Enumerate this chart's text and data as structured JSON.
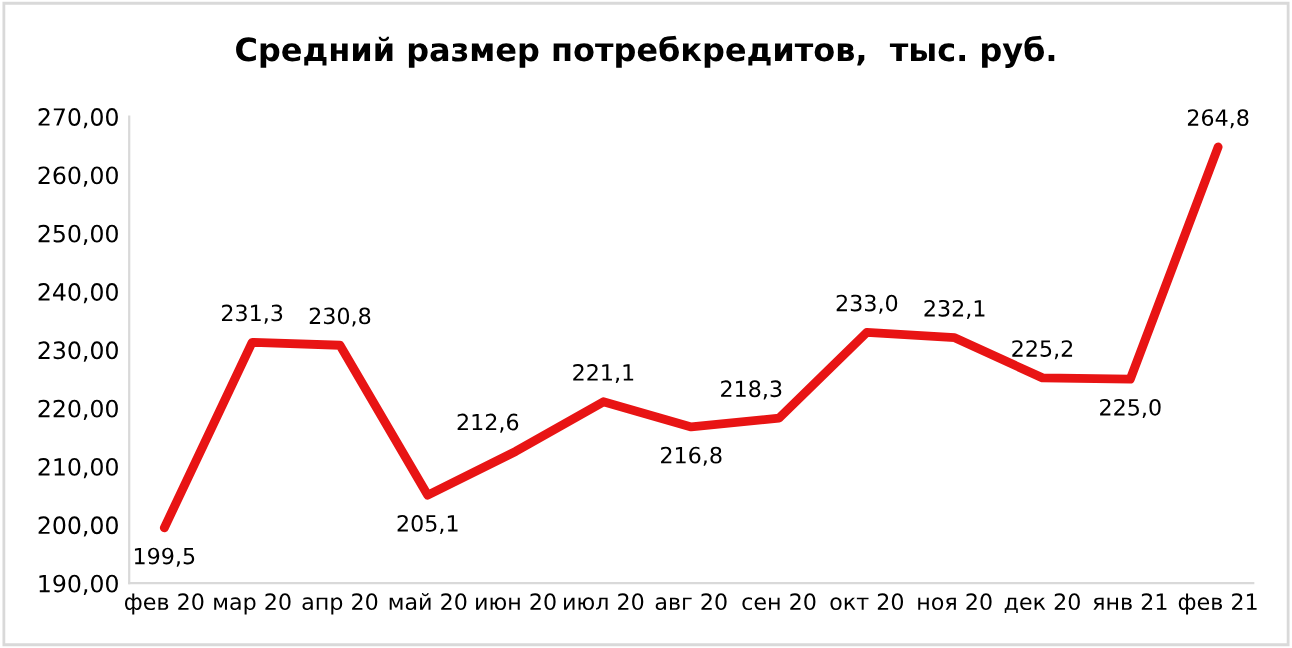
{
  "chart_data": {
    "type": "line",
    "title": "Средний размер потребкредитов,  тыс. руб.",
    "categories": [
      "фев 20",
      "мар 20",
      "апр 20",
      "май 20",
      "июн 20",
      "июл 20",
      "авг 20",
      "сен 20",
      "окт 20",
      "ноя 20",
      "дек 20",
      "янв 21",
      "фев 21"
    ],
    "series": [
      {
        "color": "#e81414",
        "values": [
          199.5,
          231.3,
          230.8,
          205.1,
          212.6,
          221.1,
          216.8,
          218.3,
          233.0,
          232.1,
          225.2,
          225.0,
          264.8
        ],
        "value_labels": [
          "199,5",
          "231,3",
          "230,8",
          "205,1",
          "212,6",
          "221,1",
          "216,8",
          "218,3",
          "233,0",
          "232,1",
          "225,2",
          "225,0",
          "264,8"
        ]
      }
    ],
    "ylim": [
      190,
      270
    ],
    "yticks": [
      {
        "value": 190,
        "label": "190,00"
      },
      {
        "value": 200,
        "label": "200,00"
      },
      {
        "value": 210,
        "label": "210,00"
      },
      {
        "value": 220,
        "label": "220,00"
      },
      {
        "value": 230,
        "label": "230,00"
      },
      {
        "value": 240,
        "label": "240,00"
      },
      {
        "value": 250,
        "label": "250,00"
      },
      {
        "value": 260,
        "label": "260,00"
      },
      {
        "value": 270,
        "label": "270,00"
      }
    ],
    "grid": false,
    "marker": "none",
    "line_style": "solid"
  }
}
